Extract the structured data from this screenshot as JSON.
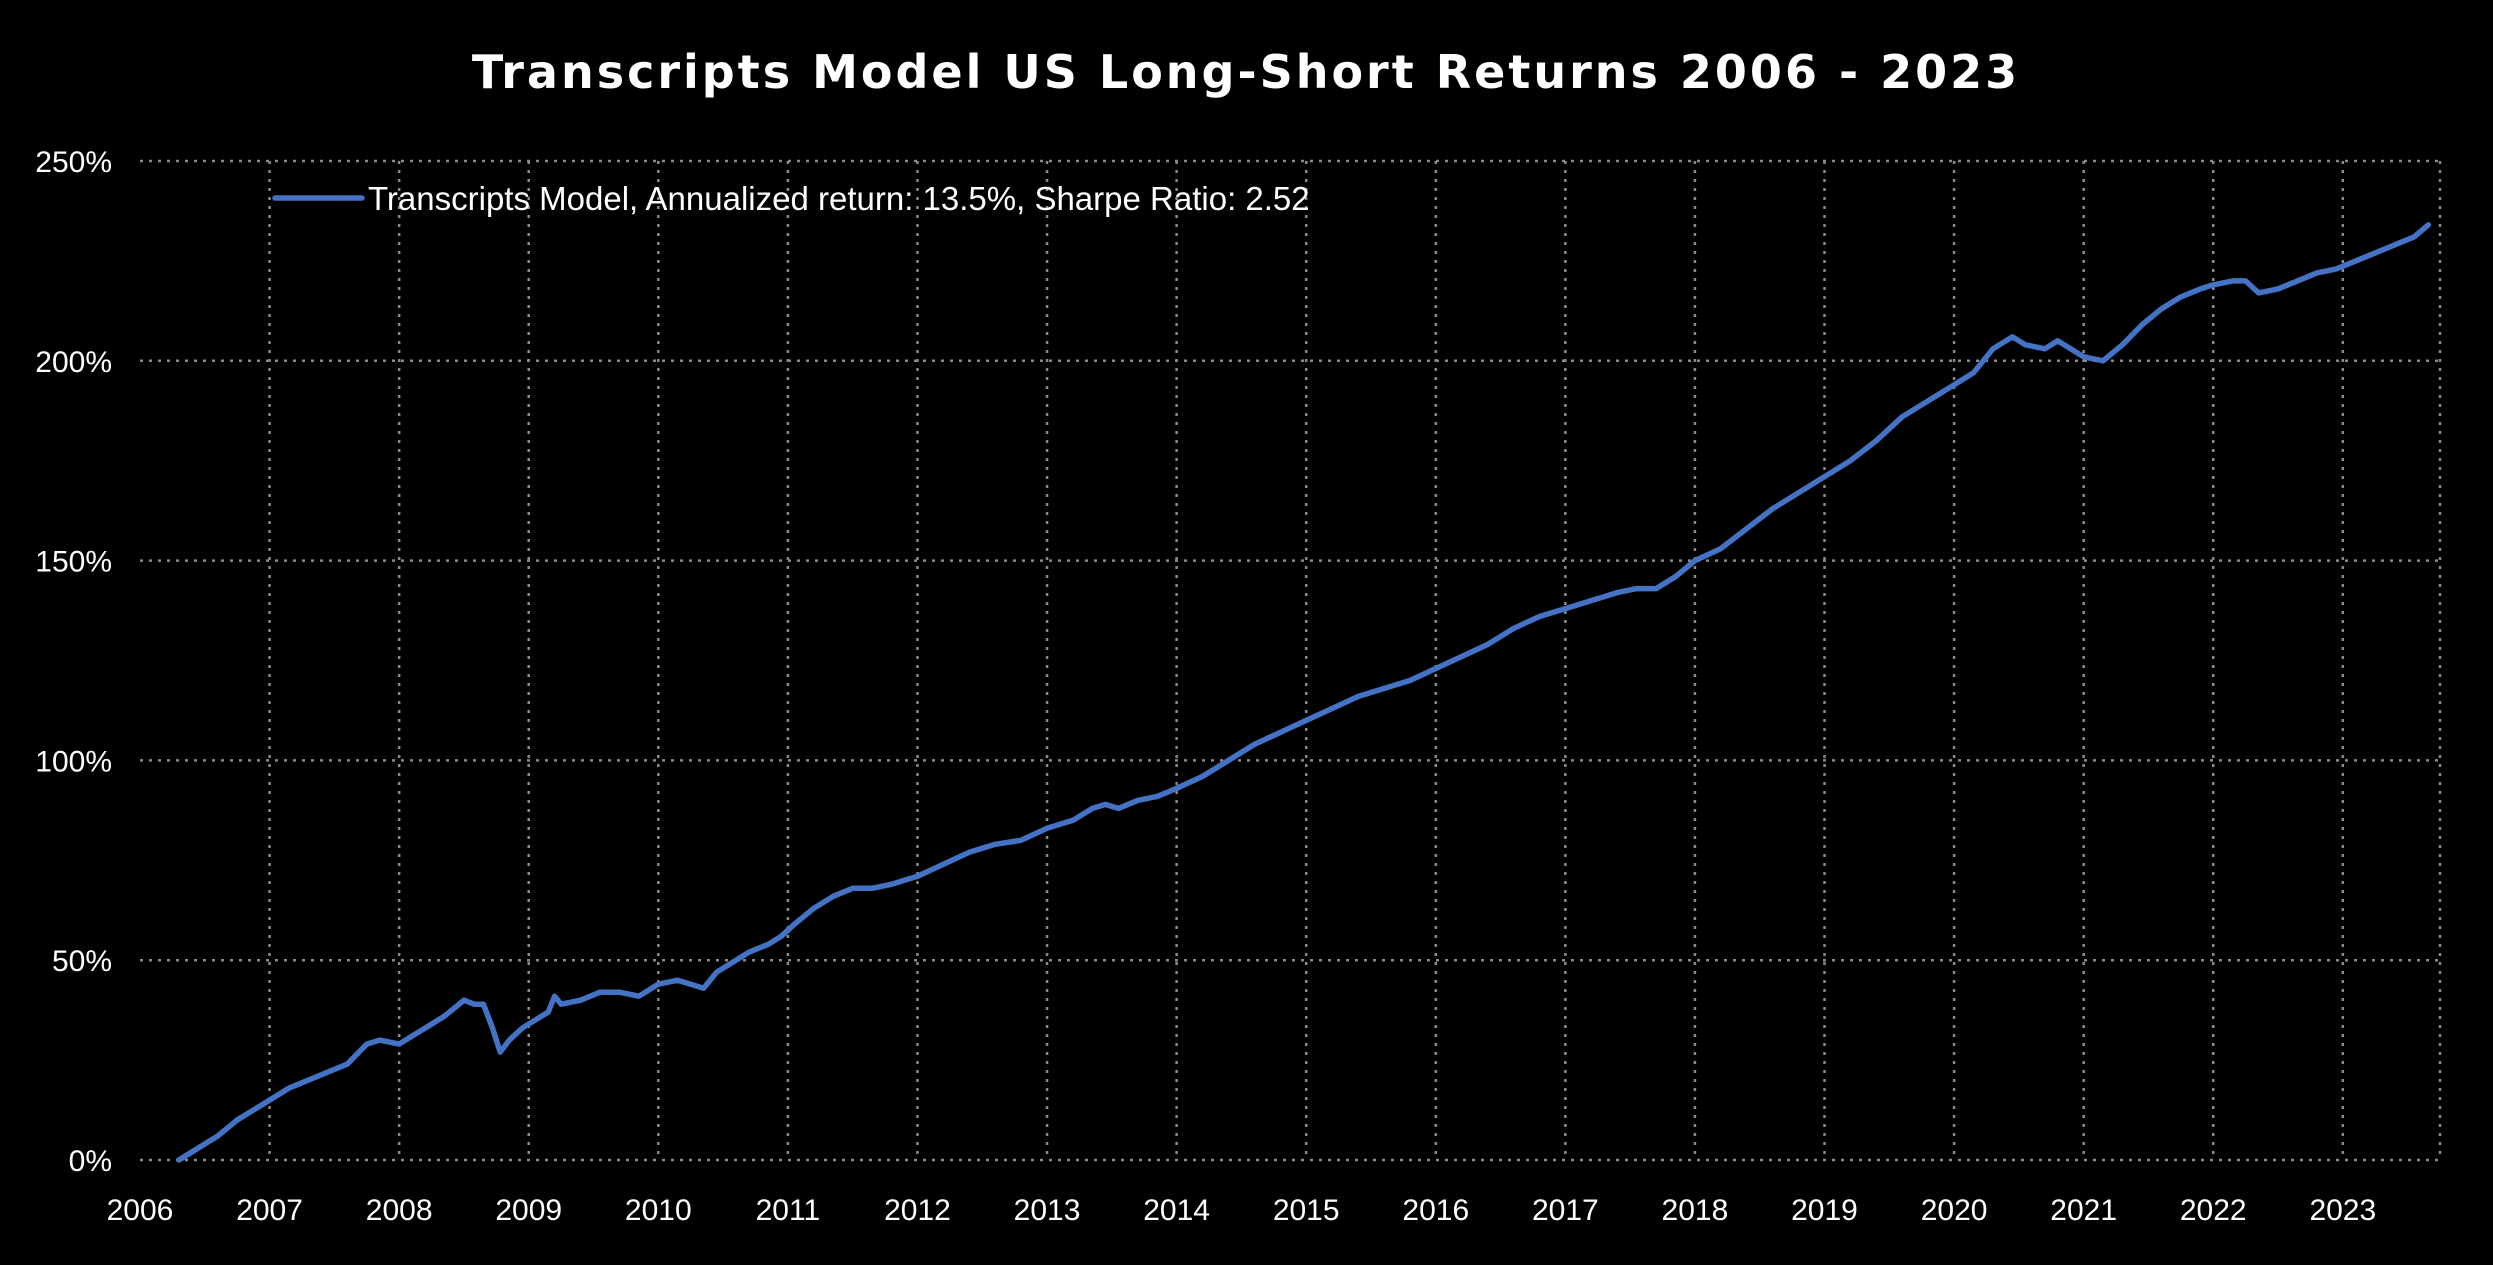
{
  "chart_data": {
    "type": "line",
    "title": "Transcripts Model US Long-Short Returns 2006 - 2023",
    "xlabel": "",
    "ylabel": "",
    "x_ticks": [
      "2006",
      "2007",
      "2008",
      "2009",
      "2010",
      "2011",
      "2012",
      "2013",
      "2014",
      "2015",
      "2016",
      "2017",
      "2018",
      "2019",
      "2020",
      "2021",
      "2022",
      "2023"
    ],
    "xlim": [
      2006,
      2023.75
    ],
    "y_ticks": [
      "0%",
      "50%",
      "100%",
      "150%",
      "200%",
      "250%"
    ],
    "y_tick_values": [
      0,
      50,
      100,
      150,
      200,
      250
    ],
    "ylim": [
      0,
      250
    ],
    "grid": true,
    "legend_position": "top-left",
    "series_color": "#4472c4",
    "series": [
      {
        "name": "Transcripts Model, Annualized return: 13.5%, Sharpe Ratio: 2.52",
        "x": [
          2006.3,
          2006.45,
          2006.6,
          2006.75,
          2006.9,
          2007.0,
          2007.15,
          2007.3,
          2007.45,
          2007.6,
          2007.75,
          2007.85,
          2008.0,
          2008.1,
          2008.2,
          2008.35,
          2008.5,
          2008.58,
          2008.65,
          2008.72,
          2008.78,
          2008.85,
          2008.95,
          2009.05,
          2009.15,
          2009.2,
          2009.25,
          2009.4,
          2009.55,
          2009.7,
          2009.85,
          2010.0,
          2010.15,
          2010.25,
          2010.35,
          2010.45,
          2010.55,
          2010.7,
          2010.85,
          2010.95,
          2011.05,
          2011.2,
          2011.35,
          2011.5,
          2011.65,
          2011.8,
          2012.0,
          2012.2,
          2012.4,
          2012.6,
          2012.8,
          2013.0,
          2013.2,
          2013.35,
          2013.45,
          2013.55,
          2013.7,
          2013.85,
          2014.0,
          2014.2,
          2014.4,
          2014.6,
          2014.8,
          2015.0,
          2015.2,
          2015.4,
          2015.6,
          2015.8,
          2016.0,
          2016.2,
          2016.4,
          2016.6,
          2016.8,
          2017.0,
          2017.2,
          2017.4,
          2017.55,
          2017.7,
          2017.85,
          2018.0,
          2018.2,
          2018.4,
          2018.6,
          2018.8,
          2019.0,
          2019.2,
          2019.4,
          2019.6,
          2019.8,
          2020.0,
          2020.15,
          2020.3,
          2020.45,
          2020.55,
          2020.7,
          2020.8,
          2020.9,
          2021.0,
          2021.15,
          2021.3,
          2021.45,
          2021.6,
          2021.75,
          2021.9,
          2022.0,
          2022.15,
          2022.25,
          2022.35,
          2022.5,
          2022.65,
          2022.8,
          2022.95,
          2023.1,
          2023.25,
          2023.4,
          2023.55,
          2023.66
        ],
        "values": [
          0,
          3,
          6,
          10,
          13,
          15,
          18,
          20,
          22,
          24,
          29,
          30,
          29,
          31,
          33,
          36,
          40,
          39,
          39,
          33,
          27,
          30,
          33,
          35,
          37,
          41,
          39,
          40,
          42,
          42,
          41,
          44,
          45,
          44,
          43,
          47,
          49,
          52,
          54,
          56,
          59,
          63,
          66,
          68,
          68,
          69,
          71,
          74,
          77,
          79,
          80,
          83,
          85,
          88,
          89,
          88,
          90,
          91,
          93,
          96,
          100,
          104,
          107,
          110,
          113,
          116,
          118,
          120,
          123,
          126,
          129,
          133,
          136,
          138,
          140,
          142,
          143,
          143,
          146,
          150,
          153,
          158,
          163,
          167,
          171,
          175,
          180,
          186,
          190,
          194,
          197,
          203,
          206,
          204,
          203,
          205,
          203,
          201,
          200,
          204,
          209,
          213,
          216,
          218,
          219,
          220,
          220,
          217,
          218,
          220,
          222,
          223,
          225,
          227,
          229,
          231,
          234
        ]
      }
    ]
  }
}
